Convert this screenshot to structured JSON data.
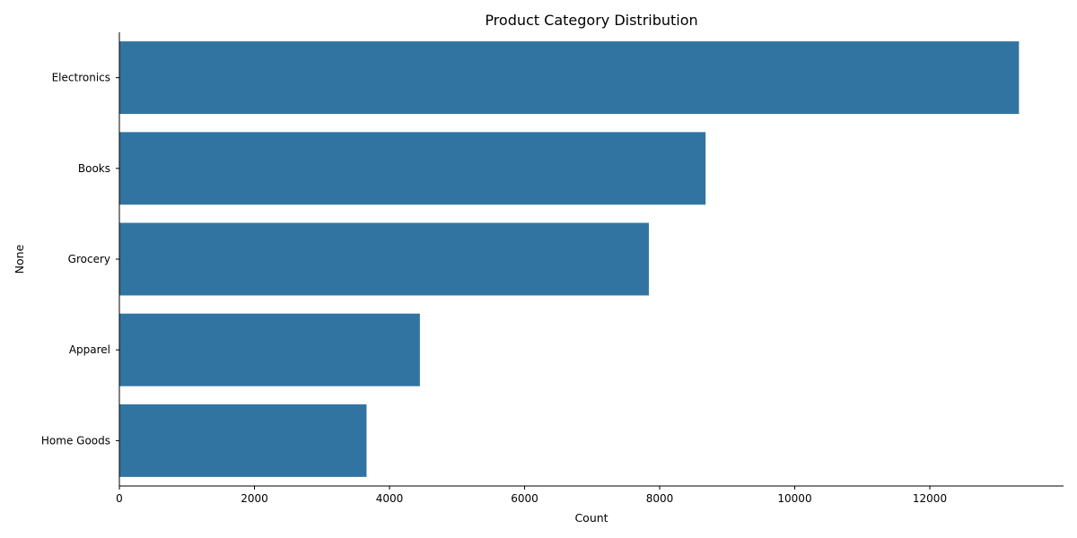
{
  "chart_data": {
    "type": "bar",
    "orientation": "horizontal",
    "title": "Product Category Distribution",
    "xlabel": "Count",
    "ylabel": "None",
    "categories": [
      "Electronics",
      "Books",
      "Grocery",
      "Apparel",
      "Home Goods"
    ],
    "values": [
      13320,
      8680,
      7840,
      4450,
      3660
    ],
    "xlim": [
      0,
      14000
    ],
    "xticks": [
      0,
      2000,
      4000,
      6000,
      8000,
      10000,
      12000
    ],
    "bar_color": "#3274a1",
    "grid": false,
    "legend": "none"
  }
}
